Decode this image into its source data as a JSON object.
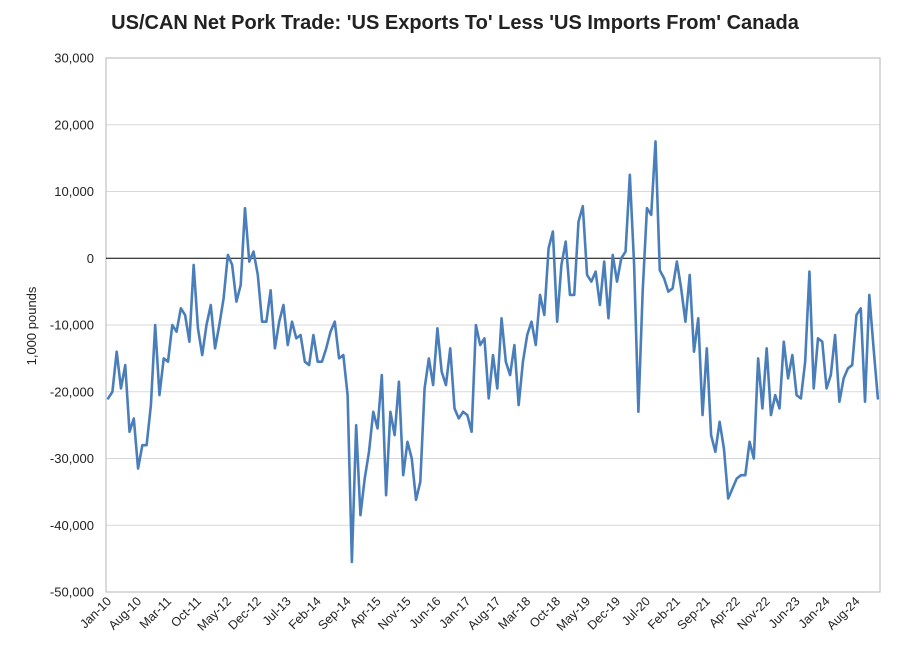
{
  "chart_data": {
    "type": "line",
    "title": "US/CAN Net Pork Trade: 'US Exports To' Less 'US Imports From' Canada",
    "xlabel": "",
    "ylabel": "1,000 pounds",
    "ylim": [
      -50000,
      30000
    ],
    "yticks": [
      30000,
      20000,
      10000,
      0,
      -10000,
      -20000,
      -30000,
      -40000,
      -50000
    ],
    "ytick_labels": [
      "30,000",
      "20,000",
      "10,000",
      "0",
      "-10,000",
      "-20,000",
      "-30,000",
      "-40,000",
      "-50,000"
    ],
    "xtick_labels": [
      "Jan-10",
      "Aug-10",
      "Mar-11",
      "Oct-11",
      "May-12",
      "Dec-12",
      "Jul-13",
      "Feb-14",
      "Sep-14",
      "Apr-15",
      "Nov-15",
      "Jun-16",
      "Jan-17",
      "Aug-17",
      "Mar-18",
      "Oct-18",
      "May-19",
      "Dec-19",
      "Jul-20",
      "Feb-21",
      "Sep-21",
      "Apr-22",
      "Nov-22",
      "Jun-23",
      "Jan-24",
      "Aug-24"
    ],
    "x_start": "Jan-10",
    "x_end": "Jan-25",
    "grid": true,
    "zero_line": true,
    "line_color": "#4a7ebb",
    "series": [
      {
        "name": "",
        "values": [
          -21000,
          -20000,
          -14000,
          -19500,
          -16000,
          -26000,
          -24000,
          -31500,
          -28000,
          -28000,
          -22000,
          -10000,
          -20500,
          -15000,
          -15500,
          -10000,
          -11000,
          -7500,
          -8500,
          -12500,
          -1000,
          -10500,
          -14500,
          -10000,
          -7000,
          -13500,
          -10000,
          -6000,
          500,
          -1000,
          -6500,
          -4000,
          7500,
          -500,
          1000,
          -2500,
          -9500,
          -9500,
          -4800,
          -13500,
          -9500,
          -7000,
          -13000,
          -9500,
          -12000,
          -11500,
          -15500,
          -16000,
          -11500,
          -15500,
          -15500,
          -13500,
          -11000,
          -9500,
          -15000,
          -14500,
          -20500,
          -45500,
          -25000,
          -38500,
          -33000,
          -29000,
          -23000,
          -25500,
          -17500,
          -35500,
          -23000,
          -26500,
          -18500,
          -32500,
          -27500,
          -30000,
          -36200,
          -33500,
          -19500,
          -15000,
          -19000,
          -10500,
          -17000,
          -19000,
          -13500,
          -22500,
          -24000,
          -23000,
          -23500,
          -26000,
          -10000,
          -13000,
          -12000,
          -21000,
          -14500,
          -19500,
          -9000,
          -15500,
          -17500,
          -13000,
          -22000,
          -15500,
          -11500,
          -9500,
          -13000,
          -5500,
          -8500,
          1500,
          4000,
          -9500,
          -1000,
          2500,
          -5500,
          -5500,
          5500,
          7800,
          -2500,
          -3500,
          -2000,
          -7000,
          -500,
          -9000,
          500,
          -3500,
          0,
          1000,
          12500,
          -1000,
          -23000,
          -5000,
          7500,
          6500,
          17500,
          -1800,
          -3000,
          -5000,
          -4500,
          -500,
          -4500,
          -9500,
          -2500,
          -14000,
          -9000,
          -23500,
          -13500,
          -26500,
          -29000,
          -24500,
          -28500,
          -36000,
          -34500,
          -33000,
          -32500,
          -32500,
          -27500,
          -30000,
          -15000,
          -22500,
          -13500,
          -23500,
          -20500,
          -22500,
          -12500,
          -18000,
          -14500,
          -20500,
          -21000,
          -15500,
          -2000,
          -19500,
          -12000,
          -12500,
          -19500,
          -17500,
          -11500,
          -21500,
          -18000,
          -16500,
          -16000,
          -8500,
          -7500,
          -21500,
          -5500,
          -13500,
          -21000
        ]
      }
    ]
  }
}
